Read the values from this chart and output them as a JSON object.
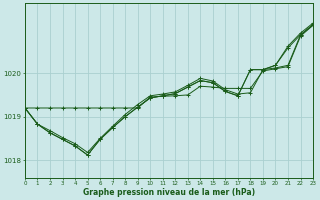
{
  "title": "Graphe pression niveau de la mer (hPa)",
  "background_color": "#cce8e8",
  "grid_color": "#aad0d0",
  "line_color": "#1a5c1a",
  "marker_color": "#1a5c1a",
  "xlim": [
    0,
    23
  ],
  "ylim": [
    1017.6,
    1021.6
  ],
  "yticks": [
    1018,
    1019,
    1020
  ],
  "xticks": [
    0,
    1,
    2,
    3,
    4,
    5,
    6,
    7,
    8,
    9,
    10,
    11,
    12,
    13,
    14,
    15,
    16,
    17,
    18,
    19,
    20,
    21,
    22,
    23
  ],
  "series": [
    [
      1019.2,
      1019.2,
      1019.2,
      1019.2,
      1019.2,
      1019.2,
      1019.2,
      1019.2,
      1019.2,
      1019.2,
      1019.45,
      1019.47,
      1019.48,
      1019.5,
      1019.7,
      1019.68,
      1019.65,
      1019.65,
      1019.65,
      1020.05,
      1020.1,
      1020.15,
      1020.85,
      1021.1
    ],
    [
      1019.2,
      1018.83,
      1018.68,
      1018.52,
      1018.38,
      1018.18,
      1018.5,
      1018.78,
      1019.05,
      1019.28,
      1019.48,
      1019.52,
      1019.57,
      1019.72,
      1019.88,
      1019.82,
      1019.62,
      1019.52,
      1019.55,
      1020.08,
      1020.12,
      1020.18,
      1020.88,
      1021.1
    ],
    [
      1019.2,
      1018.83,
      1018.63,
      1018.48,
      1018.33,
      1018.12,
      1018.48,
      1018.75,
      1019.0,
      1019.22,
      1019.43,
      1019.48,
      1019.53,
      1019.68,
      1019.83,
      1019.78,
      1019.58,
      1019.48,
      1020.08,
      1020.08,
      1020.18,
      1020.58,
      1020.88,
      1021.12
    ],
    [
      1019.2,
      1018.83,
      1018.63,
      1018.48,
      1018.33,
      1018.12,
      1018.48,
      1018.75,
      1019.0,
      1019.22,
      1019.43,
      1019.48,
      1019.53,
      1019.68,
      1019.83,
      1019.78,
      1019.58,
      1019.48,
      1020.08,
      1020.08,
      1020.18,
      1020.62,
      1020.92,
      1021.15
    ]
  ]
}
